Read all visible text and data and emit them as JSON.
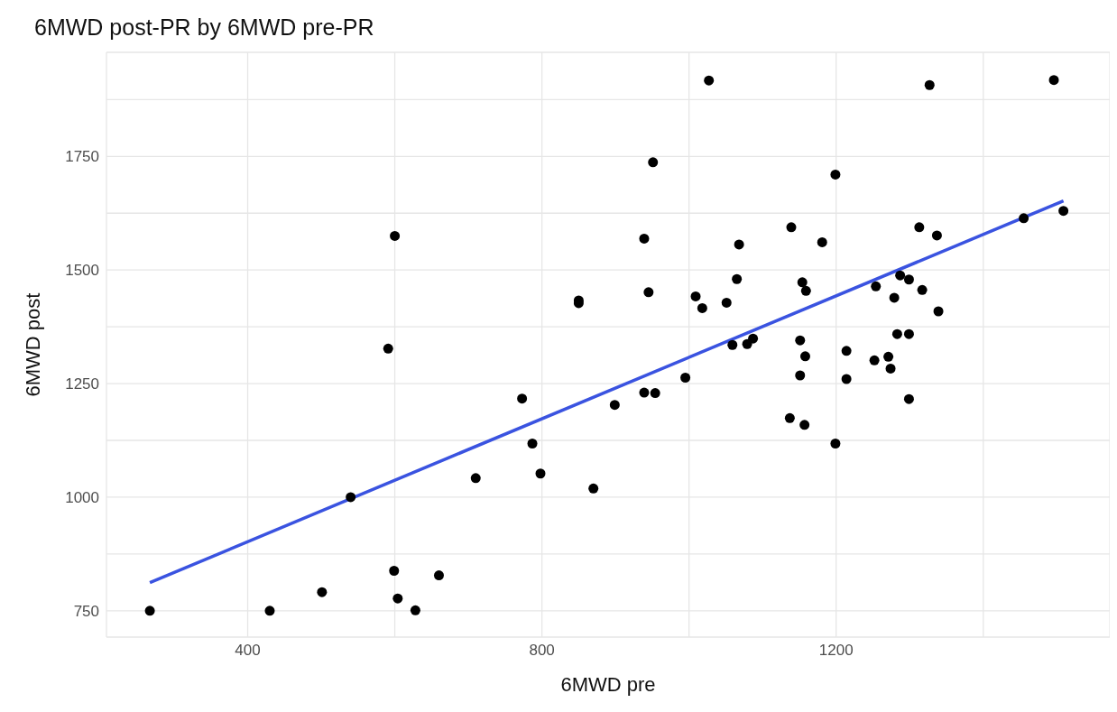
{
  "chart_data": {
    "type": "scatter",
    "title": "6MWD post-PR by 6MWD pre-PR",
    "xlabel": "6MWD pre",
    "ylabel": "6MWD post",
    "xlim": [
      208,
      1572
    ],
    "ylim": [
      692,
      1979
    ],
    "xticks": [
      400,
      {
        "value": 600,
        "label": null
      },
      800,
      {
        "value": 1000,
        "label": null
      },
      1200,
      {
        "value": 1400,
        "label": null
      }
    ],
    "yticks": [
      750,
      {
        "value": 875,
        "label": null
      },
      1000,
      {
        "value": 1125,
        "label": null
      },
      1250,
      {
        "value": 1375,
        "label": null
      },
      1500,
      {
        "value": 1625,
        "label": null
      },
      1750,
      {
        "value": 1875,
        "label": null
      }
    ],
    "grid": true,
    "marker": "circle",
    "series": [
      {
        "type": "scatter",
        "color": "#000000",
        "x": [
          267,
          430,
          501,
          540,
          599,
          604,
          628,
          660,
          710,
          773,
          787,
          798,
          870,
          899,
          939,
          954,
          995,
          600,
          591,
          1027,
          951,
          939,
          945,
          850,
          850,
          1009,
          1018,
          1051,
          1065,
          1068,
          1059,
          1327,
          1496,
          1199,
          1139,
          1181,
          1313,
          1337,
          1455,
          1509,
          1154,
          1159,
          1287,
          1299,
          1254,
          1317,
          1279,
          1339,
          1087,
          1079,
          1151,
          1158,
          1283,
          1299,
          1214,
          1252,
          1271,
          1274,
          1151,
          1214,
          1299,
          1137,
          1157,
          1199
        ],
        "values": [
          750,
          750,
          791,
          1000,
          838,
          777,
          751,
          828,
          1042,
          1217,
          1118,
          1052,
          1019,
          1203,
          1230,
          1229,
          1263,
          1575,
          1327,
          1917,
          1737,
          1569,
          1451,
          1433,
          1427,
          1442,
          1416,
          1428,
          1480,
          1556,
          1335,
          1907,
          1918,
          1710,
          1594,
          1561,
          1594,
          1576,
          1614,
          1630,
          1473,
          1454,
          1488,
          1479,
          1464,
          1456,
          1439,
          1409,
          1349,
          1337,
          1345,
          1310,
          1359,
          1359,
          1322,
          1301,
          1309,
          1283,
          1268,
          1260,
          1216,
          1174,
          1159,
          1118
        ]
      },
      {
        "type": "line",
        "color": "#3a53e0",
        "marker": "none",
        "x": [
          267,
          1509
        ],
        "values": [
          812,
          1652
        ]
      }
    ]
  }
}
